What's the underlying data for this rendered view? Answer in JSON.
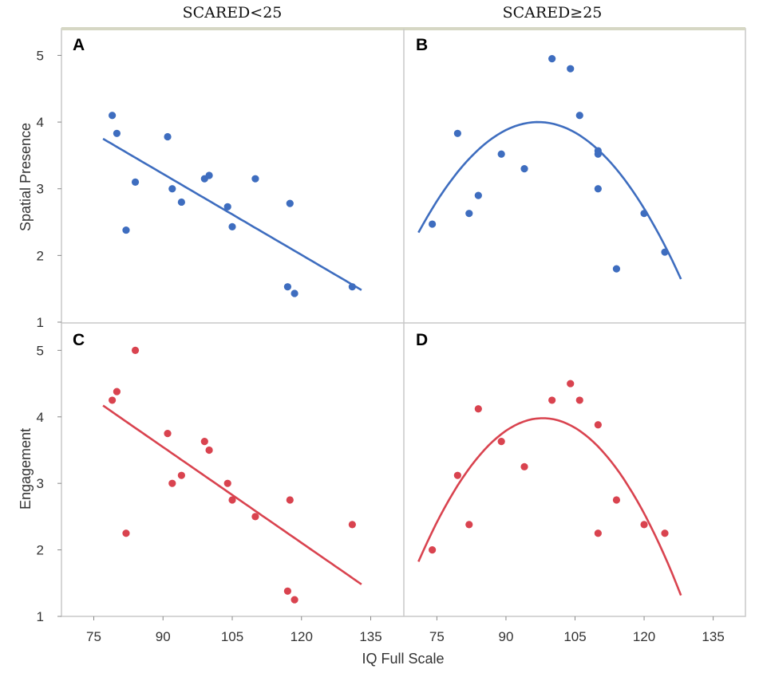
{
  "figure": {
    "col_titles": [
      "SCARED<25",
      "SCARED≥25"
    ],
    "xlabel": "IQ Full Scale",
    "row_labels": [
      "Spatial Presence",
      "Engagement"
    ],
    "x_ticks": [
      "75",
      "90",
      "105",
      "120",
      "135"
    ],
    "y_ticks": [
      "1",
      "2",
      "3",
      "4",
      "5"
    ],
    "colors": {
      "blue": "#3e6dbf",
      "red": "#d9434f",
      "frame": "#c8c8c8",
      "top_band": "#d6d7c4"
    }
  },
  "chart_data": [
    {
      "panel": "A",
      "type": "scatter",
      "color": "blue",
      "title": "SCARED<25",
      "xlabel": "IQ Full Scale",
      "ylabel": "Spatial Presence",
      "xlim": [
        68,
        142
      ],
      "ylim": [
        1,
        5.4
      ],
      "points": [
        [
          79,
          4.1
        ],
        [
          80,
          3.83
        ],
        [
          82,
          2.38
        ],
        [
          84,
          3.1
        ],
        [
          91,
          3.78
        ],
        [
          92,
          3.0
        ],
        [
          94,
          2.8
        ],
        [
          99,
          3.15
        ],
        [
          100,
          3.2
        ],
        [
          104,
          2.73
        ],
        [
          105,
          2.43
        ],
        [
          110,
          3.15
        ],
        [
          117,
          1.53
        ],
        [
          117.5,
          2.78
        ],
        [
          118.5,
          1.43
        ],
        [
          131,
          1.53
        ]
      ],
      "fit": {
        "kind": "linear",
        "coef": [
          3.75,
          -0.0405,
          0
        ],
        "x0": 77,
        "x_range": [
          77,
          133
        ]
      }
    },
    {
      "panel": "B",
      "type": "scatter",
      "color": "blue",
      "title": "SCARED≥25",
      "xlabel": "IQ Full Scale",
      "ylabel": "Spatial Presence",
      "xlim": [
        68,
        142
      ],
      "ylim": [
        1,
        5.4
      ],
      "points": [
        [
          74,
          2.47
        ],
        [
          79.5,
          3.83
        ],
        [
          82,
          2.63
        ],
        [
          84,
          2.9
        ],
        [
          89,
          3.52
        ],
        [
          94,
          3.3
        ],
        [
          100,
          4.95
        ],
        [
          104,
          4.8
        ],
        [
          106,
          4.1
        ],
        [
          110,
          3.57
        ],
        [
          110,
          3.52
        ],
        [
          110,
          3.0
        ],
        [
          114,
          1.8
        ],
        [
          120,
          2.63
        ],
        [
          124.5,
          2.05
        ]
      ],
      "fit": {
        "kind": "quadratic",
        "coef": [
          4.0,
          0,
          -0.00245
        ],
        "x0": 97,
        "x_range": [
          71,
          128
        ]
      }
    },
    {
      "panel": "C",
      "type": "scatter",
      "color": "red",
      "title": "SCARED<25",
      "xlabel": "IQ Full Scale",
      "ylabel": "Engagement",
      "xlim": [
        68,
        142
      ],
      "ylim": [
        1,
        5.4
      ],
      "points": [
        [
          79,
          4.25
        ],
        [
          80,
          4.38
        ],
        [
          82,
          2.25
        ],
        [
          84,
          5.0
        ],
        [
          91,
          3.75
        ],
        [
          92,
          3.0
        ],
        [
          94,
          3.12
        ],
        [
          99,
          3.63
        ],
        [
          100,
          3.5
        ],
        [
          104,
          3.0
        ],
        [
          105,
          2.75
        ],
        [
          110,
          2.5
        ],
        [
          117,
          1.38
        ],
        [
          117.5,
          2.75
        ],
        [
          118.5,
          1.25
        ],
        [
          131,
          2.38
        ]
      ],
      "fit": {
        "kind": "linear",
        "coef": [
          4.17,
          -0.048,
          0
        ],
        "x0": 77,
        "x_range": [
          77,
          133
        ]
      }
    },
    {
      "panel": "D",
      "type": "scatter",
      "color": "red",
      "title": "SCARED≥25",
      "xlabel": "IQ Full Scale",
      "ylabel": "Engagement",
      "xlim": [
        68,
        142
      ],
      "ylim": [
        1,
        5.4
      ],
      "points": [
        [
          74,
          2.0
        ],
        [
          79.5,
          3.12
        ],
        [
          82,
          2.38
        ],
        [
          84,
          4.12
        ],
        [
          89,
          3.63
        ],
        [
          94,
          3.25
        ],
        [
          100,
          4.25
        ],
        [
          104,
          4.5
        ],
        [
          106,
          4.25
        ],
        [
          110,
          3.88
        ],
        [
          110,
          2.25
        ],
        [
          114,
          2.75
        ],
        [
          120,
          2.38
        ],
        [
          124.5,
          2.25
        ]
      ],
      "fit": {
        "kind": "quadratic",
        "coef": [
          3.98,
          0,
          -0.00296
        ],
        "x0": 98,
        "x_range": [
          71,
          128
        ]
      }
    }
  ]
}
